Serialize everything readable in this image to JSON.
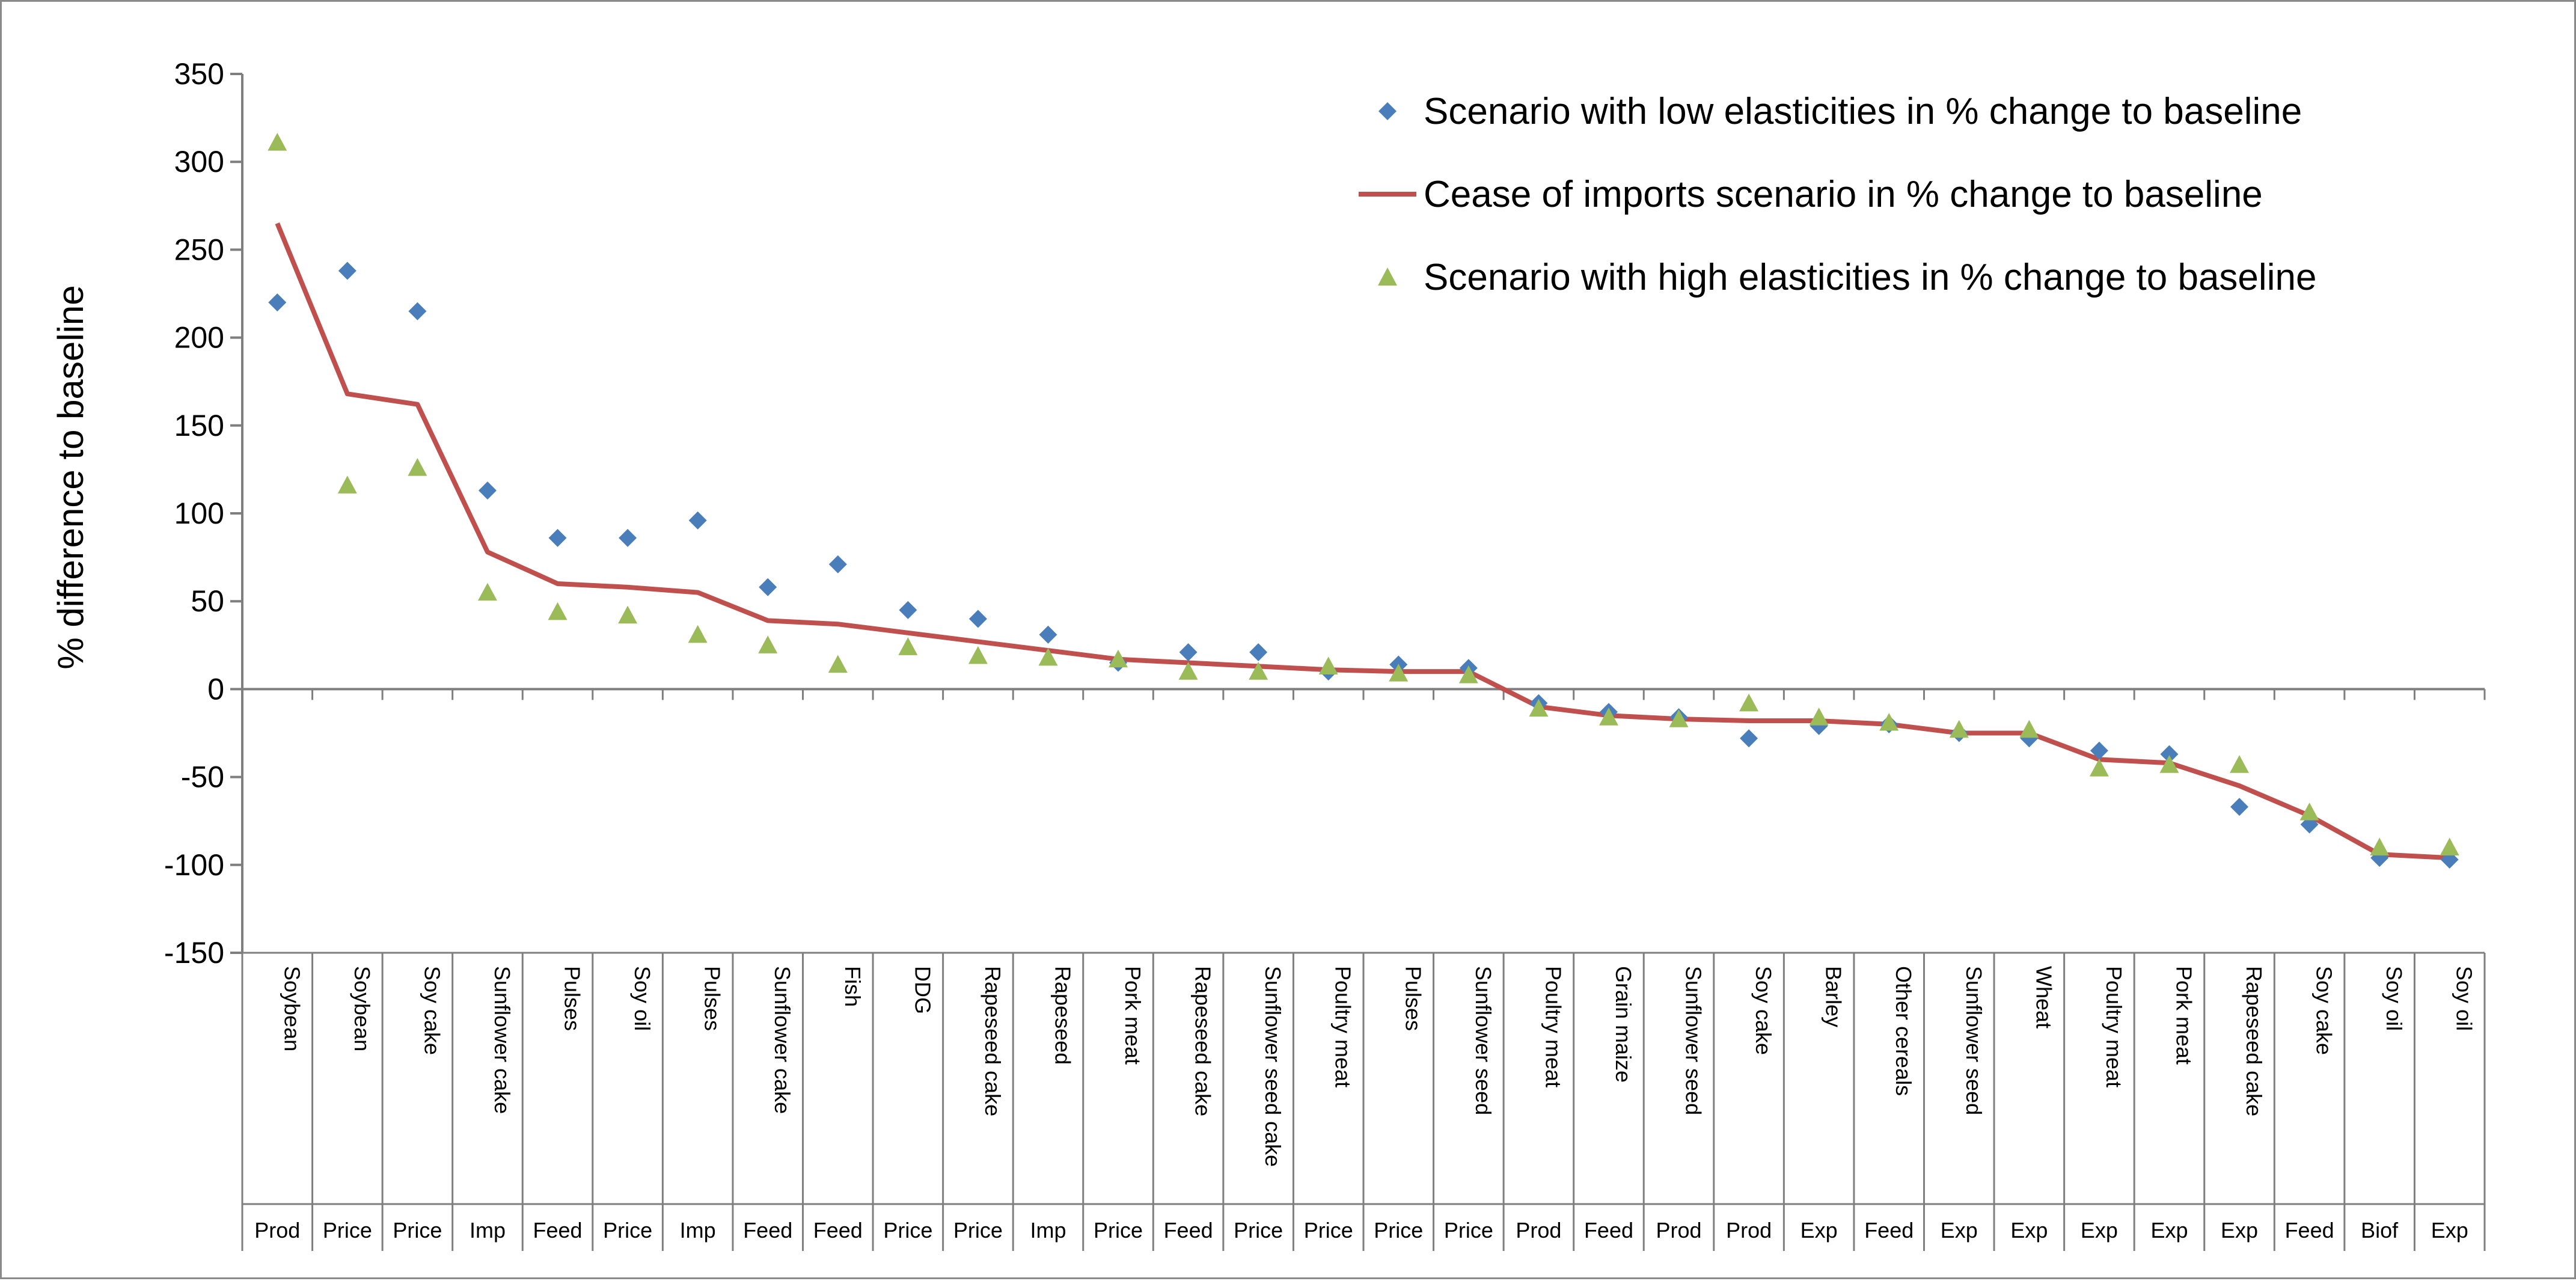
{
  "chart_data": {
    "type": "line",
    "title": "",
    "xlabel": "",
    "ylabel": "% difference to baseline",
    "ylim": [
      -150,
      350
    ],
    "yticks": [
      "350",
      "300",
      "250",
      "200",
      "150",
      "100",
      "50",
      "0",
      "-50",
      "-100",
      "-150"
    ],
    "ytick_values": [
      350,
      300,
      250,
      200,
      150,
      100,
      50,
      0,
      -50,
      -100,
      -150
    ],
    "grid": false,
    "legend_position": "top-right",
    "categories": [
      {
        "name": "Soybean",
        "group": "Prod"
      },
      {
        "name": "Soybean",
        "group": "Price"
      },
      {
        "name": "Soy cake",
        "group": "Price"
      },
      {
        "name": "Sunflower cake",
        "group": "Imp"
      },
      {
        "name": "Pulses",
        "group": "Feed"
      },
      {
        "name": "Soy oil",
        "group": "Price"
      },
      {
        "name": "Pulses",
        "group": "Imp"
      },
      {
        "name": "Sunflower cake",
        "group": "Feed"
      },
      {
        "name": "Fish",
        "group": "Feed"
      },
      {
        "name": "DDG",
        "group": "Price"
      },
      {
        "name": "Rapeseed cake",
        "group": "Price"
      },
      {
        "name": "Rapeseed",
        "group": "Imp"
      },
      {
        "name": "Pork meat",
        "group": "Price"
      },
      {
        "name": "Rapeseed cake",
        "group": "Feed"
      },
      {
        "name": "Sunflower seed cake",
        "group": "Price"
      },
      {
        "name": "Poultry meat",
        "group": "Price"
      },
      {
        "name": "Pulses",
        "group": "Price"
      },
      {
        "name": "Sunflower seed",
        "group": "Price"
      },
      {
        "name": "Poultry meat",
        "group": "Prod"
      },
      {
        "name": "Grain maize",
        "group": "Feed"
      },
      {
        "name": "Sunflower seed",
        "group": "Prod"
      },
      {
        "name": "Soy cake",
        "group": "Prod"
      },
      {
        "name": "Barley",
        "group": "Exp"
      },
      {
        "name": "Other cereals",
        "group": "Feed"
      },
      {
        "name": "Sunflower seed",
        "group": "Exp"
      },
      {
        "name": "Wheat",
        "group": "Exp"
      },
      {
        "name": "Poultry meat",
        "group": "Exp"
      },
      {
        "name": "Pork meat",
        "group": "Exp"
      },
      {
        "name": "Rapeseed cake",
        "group": "Exp"
      },
      {
        "name": "Soy cake",
        "group": "Feed"
      },
      {
        "name": "Soy oil",
        "group": "Biof"
      },
      {
        "name": "Soy oil",
        "group": "Exp"
      }
    ],
    "series": [
      {
        "name": "Scenario with low elasticities in % change to baseline",
        "kind": "marker-diamond",
        "color": "#4a7ebb",
        "values": [
          220,
          238,
          215,
          113,
          86,
          86,
          96,
          58,
          71,
          45,
          40,
          31,
          15,
          21,
          21,
          10,
          14,
          12,
          -8,
          -13,
          -16,
          -28,
          -21,
          -20,
          -25,
          -28,
          -35,
          -37,
          -67,
          -77,
          -96,
          -97
        ]
      },
      {
        "name": "Cease of imports scenario in % change to baseline",
        "kind": "line",
        "color": "#c0504d",
        "values": [
          265,
          168,
          162,
          78,
          60,
          58,
          55,
          39,
          37,
          32,
          27,
          22,
          17,
          15,
          13,
          11,
          10,
          10,
          -10,
          -15,
          -17,
          -18,
          -18,
          -20,
          -25,
          -25,
          -40,
          -42,
          -55,
          -72,
          -94,
          -96
        ]
      },
      {
        "name": "Scenario with high elasticities in % change to baseline",
        "kind": "marker-triangle",
        "color": "#9bbb59",
        "values": [
          311,
          116,
          126,
          55,
          44,
          42,
          31,
          25,
          14,
          24,
          19,
          18,
          17,
          10,
          10,
          13,
          9,
          8,
          -11,
          -16,
          -17,
          -8,
          -16,
          -19,
          -23,
          -23,
          -45,
          -43,
          -43,
          -70,
          -90,
          -90
        ]
      }
    ]
  }
}
